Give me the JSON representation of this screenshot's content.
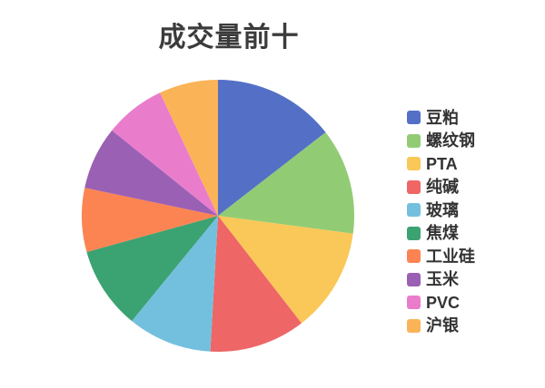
{
  "title": "成交量前十",
  "style": {
    "background": "#ffffff",
    "title_color": "#3b3b3b",
    "legend_text_color": "#333333"
  },
  "chart_data": {
    "type": "pie",
    "title": "成交量前十",
    "legend_position": "right",
    "start_angle": "top",
    "direction": "clockwise",
    "slice_labels_shown": false,
    "values_are_percent_estimated": true,
    "legend_entries": [
      "豆粕",
      "螺纹钢",
      "PTA",
      "纯碱",
      "玻璃",
      "焦煤",
      "工业硅",
      "玉米",
      "PVC",
      "沪银"
    ],
    "series": [
      {
        "name": "豆粕",
        "value_pct": 14.5,
        "color": "#5470C6"
      },
      {
        "name": "螺纹钢",
        "value_pct": 12.6,
        "color": "#91CC75"
      },
      {
        "name": "PTA",
        "value_pct": 12.4,
        "color": "#FAC858"
      },
      {
        "name": "纯碱",
        "value_pct": 11.4,
        "color": "#EE6666"
      },
      {
        "name": "玻璃",
        "value_pct": 10.0,
        "color": "#73C0DE"
      },
      {
        "name": "焦煤",
        "value_pct": 9.8,
        "color": "#3BA272"
      },
      {
        "name": "工业硅",
        "value_pct": 7.6,
        "color": "#FC8452"
      },
      {
        "name": "玉米",
        "value_pct": 7.5,
        "color": "#9A60B4"
      },
      {
        "name": "PVC",
        "value_pct": 7.2,
        "color": "#EA7CCC"
      },
      {
        "name": "沪银",
        "value_pct": 7.0,
        "color": "#FAB357"
      }
    ]
  }
}
